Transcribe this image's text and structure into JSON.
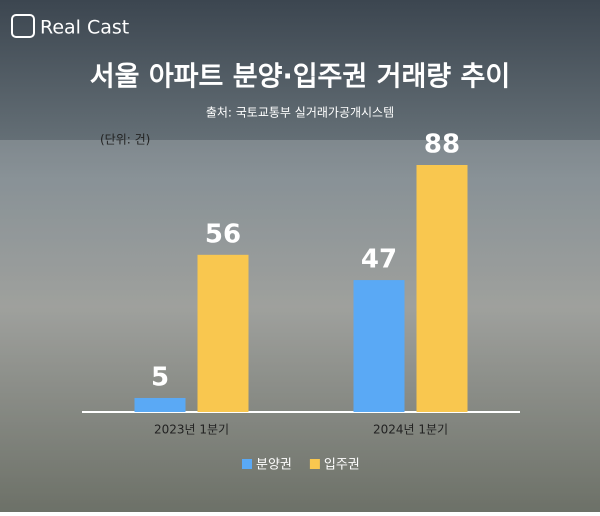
{
  "logo": "Real Cast",
  "chart_data": {
    "type": "bar",
    "title": "서울 아파트 분양·입주권 거래량 추이",
    "subtitle": "출처: 국토교통부 실거래가공개시스템",
    "unit_note": "(단위: 건)",
    "categories": [
      "2023년 1분기",
      "2024년 1분기"
    ],
    "series": [
      {
        "name": "분양권",
        "color": "#5aa9f5",
        "values": [
          5,
          47
        ]
      },
      {
        "name": "입주권",
        "color": "#f9c74f",
        "values": [
          56,
          88
        ]
      }
    ]
  }
}
